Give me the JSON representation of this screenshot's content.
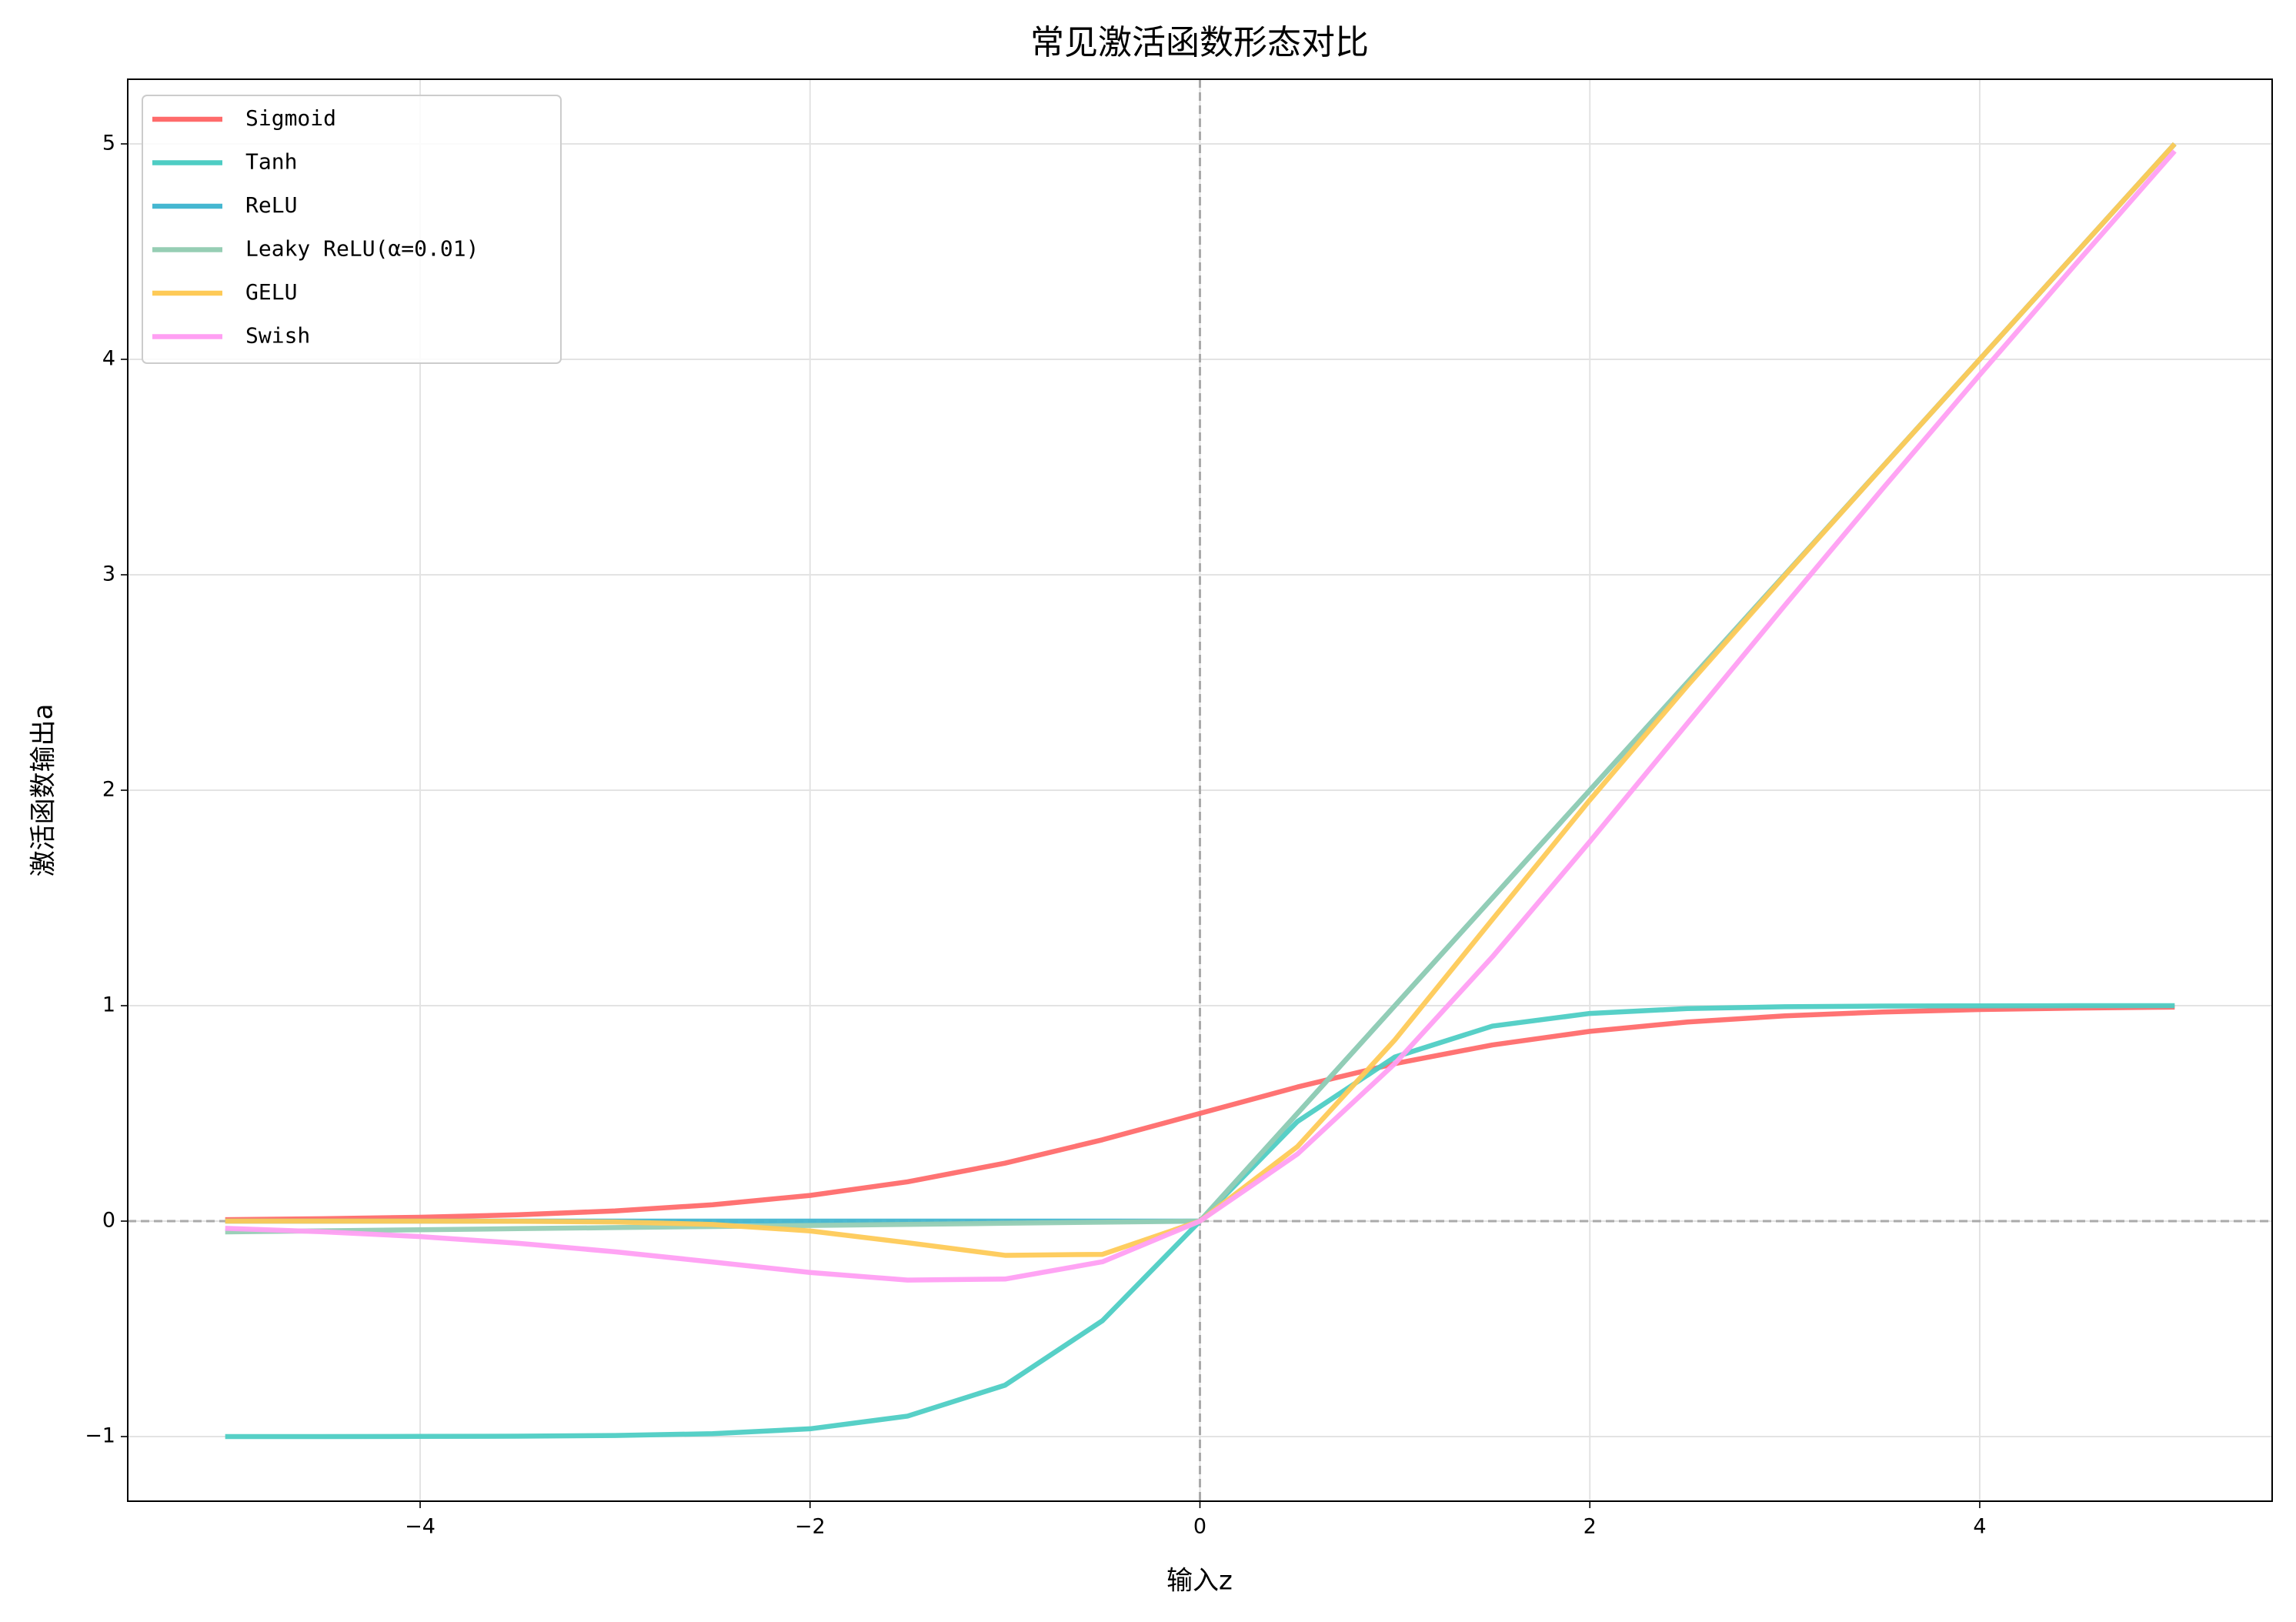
{
  "chart_data": {
    "type": "line",
    "title": "常见激活函数形态对比",
    "x_label": "输入z",
    "y_label": "激活函数输出a",
    "x": [
      -5,
      -4.5,
      -4,
      -3.5,
      -3,
      -2.5,
      -2,
      -1.5,
      -1,
      -0.5,
      0,
      0.5,
      1,
      1.5,
      2,
      2.5,
      3,
      3.5,
      4,
      4.5,
      5
    ],
    "series": [
      {
        "name": "Sigmoid",
        "color": "#FF6B6B",
        "values": [
          0.0067,
          0.011,
          0.018,
          0.0293,
          0.0474,
          0.0759,
          0.1192,
          0.1824,
          0.2689,
          0.3775,
          0.5,
          0.6225,
          0.7311,
          0.8176,
          0.8808,
          0.9241,
          0.9526,
          0.9707,
          0.982,
          0.989,
          0.9933
        ]
      },
      {
        "name": "Tanh",
        "color": "#4ECDC4",
        "values": [
          -0.9999,
          -0.9998,
          -0.9993,
          -0.9982,
          -0.9951,
          -0.9866,
          -0.964,
          -0.9051,
          -0.7616,
          -0.4621,
          0,
          0.4621,
          0.7616,
          0.9051,
          0.964,
          0.9866,
          0.9951,
          0.9982,
          0.9993,
          0.9998,
          0.9999
        ]
      },
      {
        "name": "ReLU",
        "color": "#45B7D1",
        "values": [
          0,
          0,
          0,
          0,
          0,
          0,
          0,
          0,
          0,
          0,
          0,
          0.5,
          1,
          1.5,
          2,
          2.5,
          3,
          3.5,
          4,
          4.5,
          5
        ]
      },
      {
        "name": "Leaky ReLU(α=0.01)",
        "color": "#96CEB4",
        "values": [
          -0.05,
          -0.045,
          -0.04,
          -0.035,
          -0.03,
          -0.025,
          -0.02,
          -0.015,
          -0.01,
          -0.005,
          0,
          0.5,
          1,
          1.5,
          2,
          2.5,
          3,
          3.5,
          4,
          4.5,
          5
        ]
      },
      {
        "name": "GELU",
        "color": "#FECA57",
        "values": [
          0,
          0,
          -0.0001,
          -0.0008,
          -0.004,
          -0.0155,
          -0.0455,
          -0.1002,
          -0.1587,
          -0.1543,
          0,
          0.3457,
          0.8413,
          1.3998,
          1.9545,
          2.4845,
          2.996,
          3.4992,
          3.9999,
          4.5,
          5
        ]
      },
      {
        "name": "Swish",
        "color": "#FF9FF3",
        "values": [
          -0.0335,
          -0.0495,
          -0.0719,
          -0.1026,
          -0.1423,
          -0.1896,
          -0.2384,
          -0.2736,
          -0.2689,
          -0.1888,
          0,
          0.3112,
          0.7311,
          1.2264,
          1.7616,
          2.3102,
          2.8577,
          3.3974,
          3.9281,
          4.4506,
          4.9665
        ]
      }
    ],
    "xlim": [
      -5.5,
      5.5
    ],
    "ylim": [
      -1.3,
      5.3
    ],
    "xticks": [
      {
        "value": -4,
        "label": "−4"
      },
      {
        "value": -2,
        "label": "−2"
      },
      0,
      2,
      4
    ],
    "yticks": [
      {
        "value": -1,
        "label": "−1"
      },
      0,
      1,
      2,
      3,
      4,
      5
    ],
    "hlines": [
      0
    ],
    "vlines": [
      0
    ],
    "grid": true,
    "legend": "upper-left"
  }
}
